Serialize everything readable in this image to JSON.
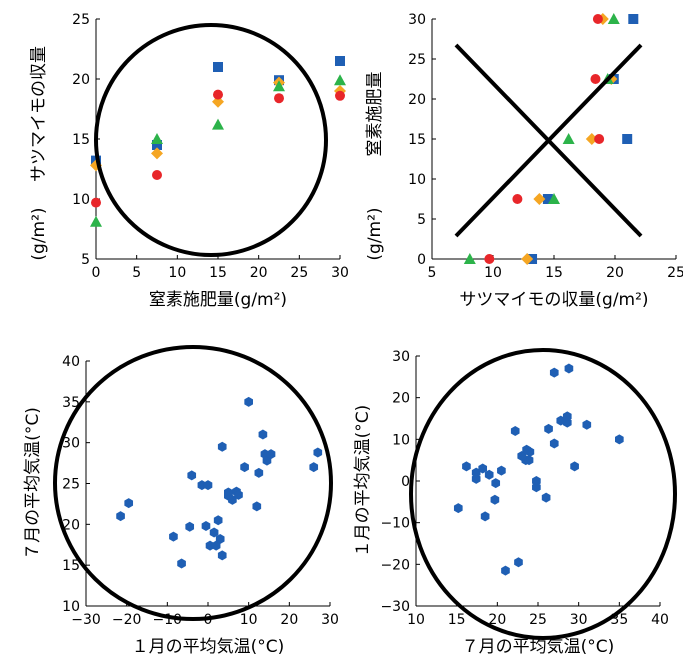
{
  "chart_data": [
    {
      "type": "scatter",
      "xlabel": "窒素施肥量(g/m²)",
      "ylabel": "サツマイモの収量",
      "yunit": "(g/m²)",
      "xlim": [
        0,
        30
      ],
      "ylim": [
        5,
        25
      ],
      "xticks": [
        "0",
        "5",
        "10",
        "15",
        "20",
        "25",
        "30"
      ],
      "yticks": [
        "5",
        "10",
        "15",
        "20",
        "25"
      ],
      "annotation": "circle",
      "series": [
        {
          "marker": "square",
          "color": "#1f5fb4",
          "x": [
            0,
            7.5,
            15,
            22.5,
            30
          ],
          "y": [
            13.2,
            14.5,
            21.0,
            19.9,
            21.5
          ]
        },
        {
          "marker": "diamond",
          "color": "#f5a623",
          "x": [
            0,
            7.5,
            15,
            22.5,
            30
          ],
          "y": [
            12.8,
            13.8,
            18.1,
            19.7,
            19.0
          ]
        },
        {
          "marker": "circle",
          "color": "#e8262a",
          "x": [
            0,
            7.5,
            15,
            22.5,
            30
          ],
          "y": [
            9.7,
            12.0,
            18.7,
            18.4,
            18.6
          ]
        },
        {
          "marker": "triangle",
          "color": "#2cb34a",
          "x": [
            0,
            7.5,
            15,
            22.5,
            30
          ],
          "y": [
            8.1,
            15.0,
            16.2,
            19.4,
            19.9
          ]
        }
      ]
    },
    {
      "type": "scatter",
      "xlabel": "サツマイモの収量(g/m²)",
      "ylabel": "窒素施肥量",
      "yunit": "(g/m²)",
      "xlim": [
        5,
        25
      ],
      "ylim": [
        0,
        30
      ],
      "xticks": [
        "5",
        "10",
        "15",
        "20",
        "25"
      ],
      "yticks": [
        "0",
        "5",
        "10",
        "15",
        "20",
        "25",
        "30"
      ],
      "annotation": "cross",
      "series": [
        {
          "marker": "square",
          "color": "#1f5fb4",
          "x": [
            13.2,
            14.5,
            21.0,
            19.9,
            21.5
          ],
          "y": [
            0,
            7.5,
            15,
            22.5,
            30
          ]
        },
        {
          "marker": "diamond",
          "color": "#f5a623",
          "x": [
            12.8,
            13.8,
            18.1,
            19.7,
            19.0
          ],
          "y": [
            0,
            7.5,
            15,
            22.5,
            30
          ]
        },
        {
          "marker": "circle",
          "color": "#e8262a",
          "x": [
            9.7,
            12.0,
            18.7,
            18.4,
            18.6
          ],
          "y": [
            0,
            7.5,
            15,
            22.5,
            30
          ]
        },
        {
          "marker": "triangle",
          "color": "#2cb34a",
          "x": [
            8.1,
            15.0,
            16.2,
            19.4,
            19.9
          ],
          "y": [
            0,
            7.5,
            15,
            22.5,
            30
          ]
        }
      ]
    },
    {
      "type": "scatter",
      "xlabel": "１月の平均気温(°C)",
      "ylabel": "７月の平均気温(°C)",
      "xlim": [
        -30,
        30
      ],
      "ylim": [
        10,
        40
      ],
      "xticks": [
        "−30",
        "−20",
        "−10",
        "0",
        "10",
        "20",
        "30"
      ],
      "yticks": [
        "10",
        "15",
        "20",
        "25",
        "30",
        "35",
        "40"
      ],
      "annotation": "circle",
      "series": [
        {
          "marker": "hexagon",
          "color": "#1f5fb4",
          "x": [
            -21.5,
            -19.5,
            -8.5,
            -6.5,
            -4.5,
            -4,
            -1.5,
            -0.5,
            0,
            0.5,
            1.5,
            2,
            2.5,
            3,
            3.5,
            3.5,
            5,
            5,
            6,
            7,
            7.5,
            9,
            10,
            12,
            12.5,
            13.5,
            14,
            14.5,
            15.5,
            26,
            27
          ],
          "y": [
            21,
            22.6,
            18.5,
            15.2,
            19.7,
            26,
            24.8,
            19.8,
            24.8,
            17.4,
            19,
            17.4,
            20.5,
            18.2,
            16.2,
            29.5,
            23.5,
            23.9,
            23,
            24,
            23.6,
            27,
            35,
            22.2,
            26.3,
            31,
            28.6,
            27.8,
            28.6,
            27,
            28.8
          ]
        }
      ]
    },
    {
      "type": "scatter",
      "xlabel": "７月の平均気温(°C)",
      "ylabel": "１月の平均気温(°C)",
      "xlim": [
        10,
        40
      ],
      "ylim": [
        -30,
        30
      ],
      "xticks": [
        "10",
        "15",
        "20",
        "25",
        "30",
        "35",
        "40"
      ],
      "yticks": [
        "−30",
        "−20",
        "−10",
        "0",
        "10",
        "20",
        "30"
      ],
      "annotation": "circle",
      "series": [
        {
          "marker": "hexagon",
          "color": "#1f5fb4",
          "x": [
            21,
            22.6,
            18.5,
            15.2,
            19.7,
            26,
            24.8,
            19.8,
            24.8,
            17.4,
            19,
            17.4,
            20.5,
            18.2,
            16.2,
            29.5,
            23.5,
            23.9,
            23,
            24,
            23.6,
            27,
            35,
            22.2,
            26.3,
            31,
            28.6,
            27.8,
            28.6,
            27,
            28.8
          ],
          "y": [
            -21.5,
            -19.5,
            -8.5,
            -6.5,
            -4.5,
            -4,
            -1.5,
            -0.5,
            0,
            0.5,
            1.5,
            2,
            2.5,
            3,
            3.5,
            3.5,
            5,
            5,
            6,
            7,
            7.5,
            9,
            10,
            12,
            12.5,
            13.5,
            14,
            14.5,
            15.5,
            26,
            27
          ]
        }
      ]
    }
  ]
}
